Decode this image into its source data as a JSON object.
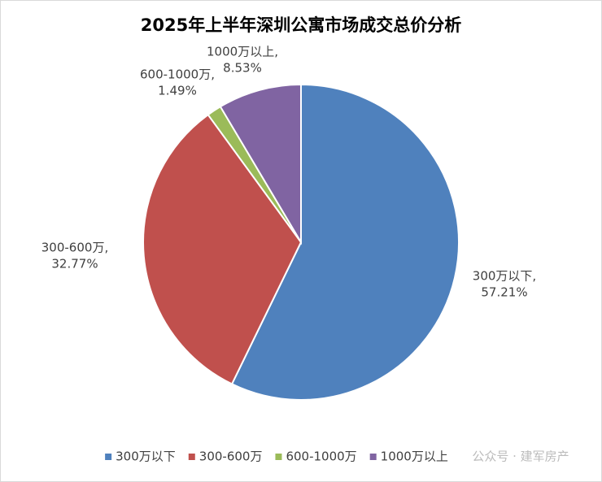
{
  "chart_data": {
    "type": "pie",
    "title": "2025年上半年深圳公寓市场成交总价分析",
    "categories": [
      "300万以下",
      "300-600万",
      "600-1000万",
      "1000万以上"
    ],
    "values": [
      57.21,
      32.77,
      1.49,
      8.53
    ],
    "label_names": [
      "300万以下,",
      "300-600万,",
      "600-1000万,",
      "1000万以上,"
    ],
    "value_labels": [
      "57.21%",
      "32.77%",
      "1.49%",
      "8.53%"
    ],
    "colors": [
      "#4f81bd",
      "#c0504d",
      "#9bbb59",
      "#8064a2"
    ],
    "legend": "bottom",
    "watermark": "公众号 · 建军房产"
  }
}
